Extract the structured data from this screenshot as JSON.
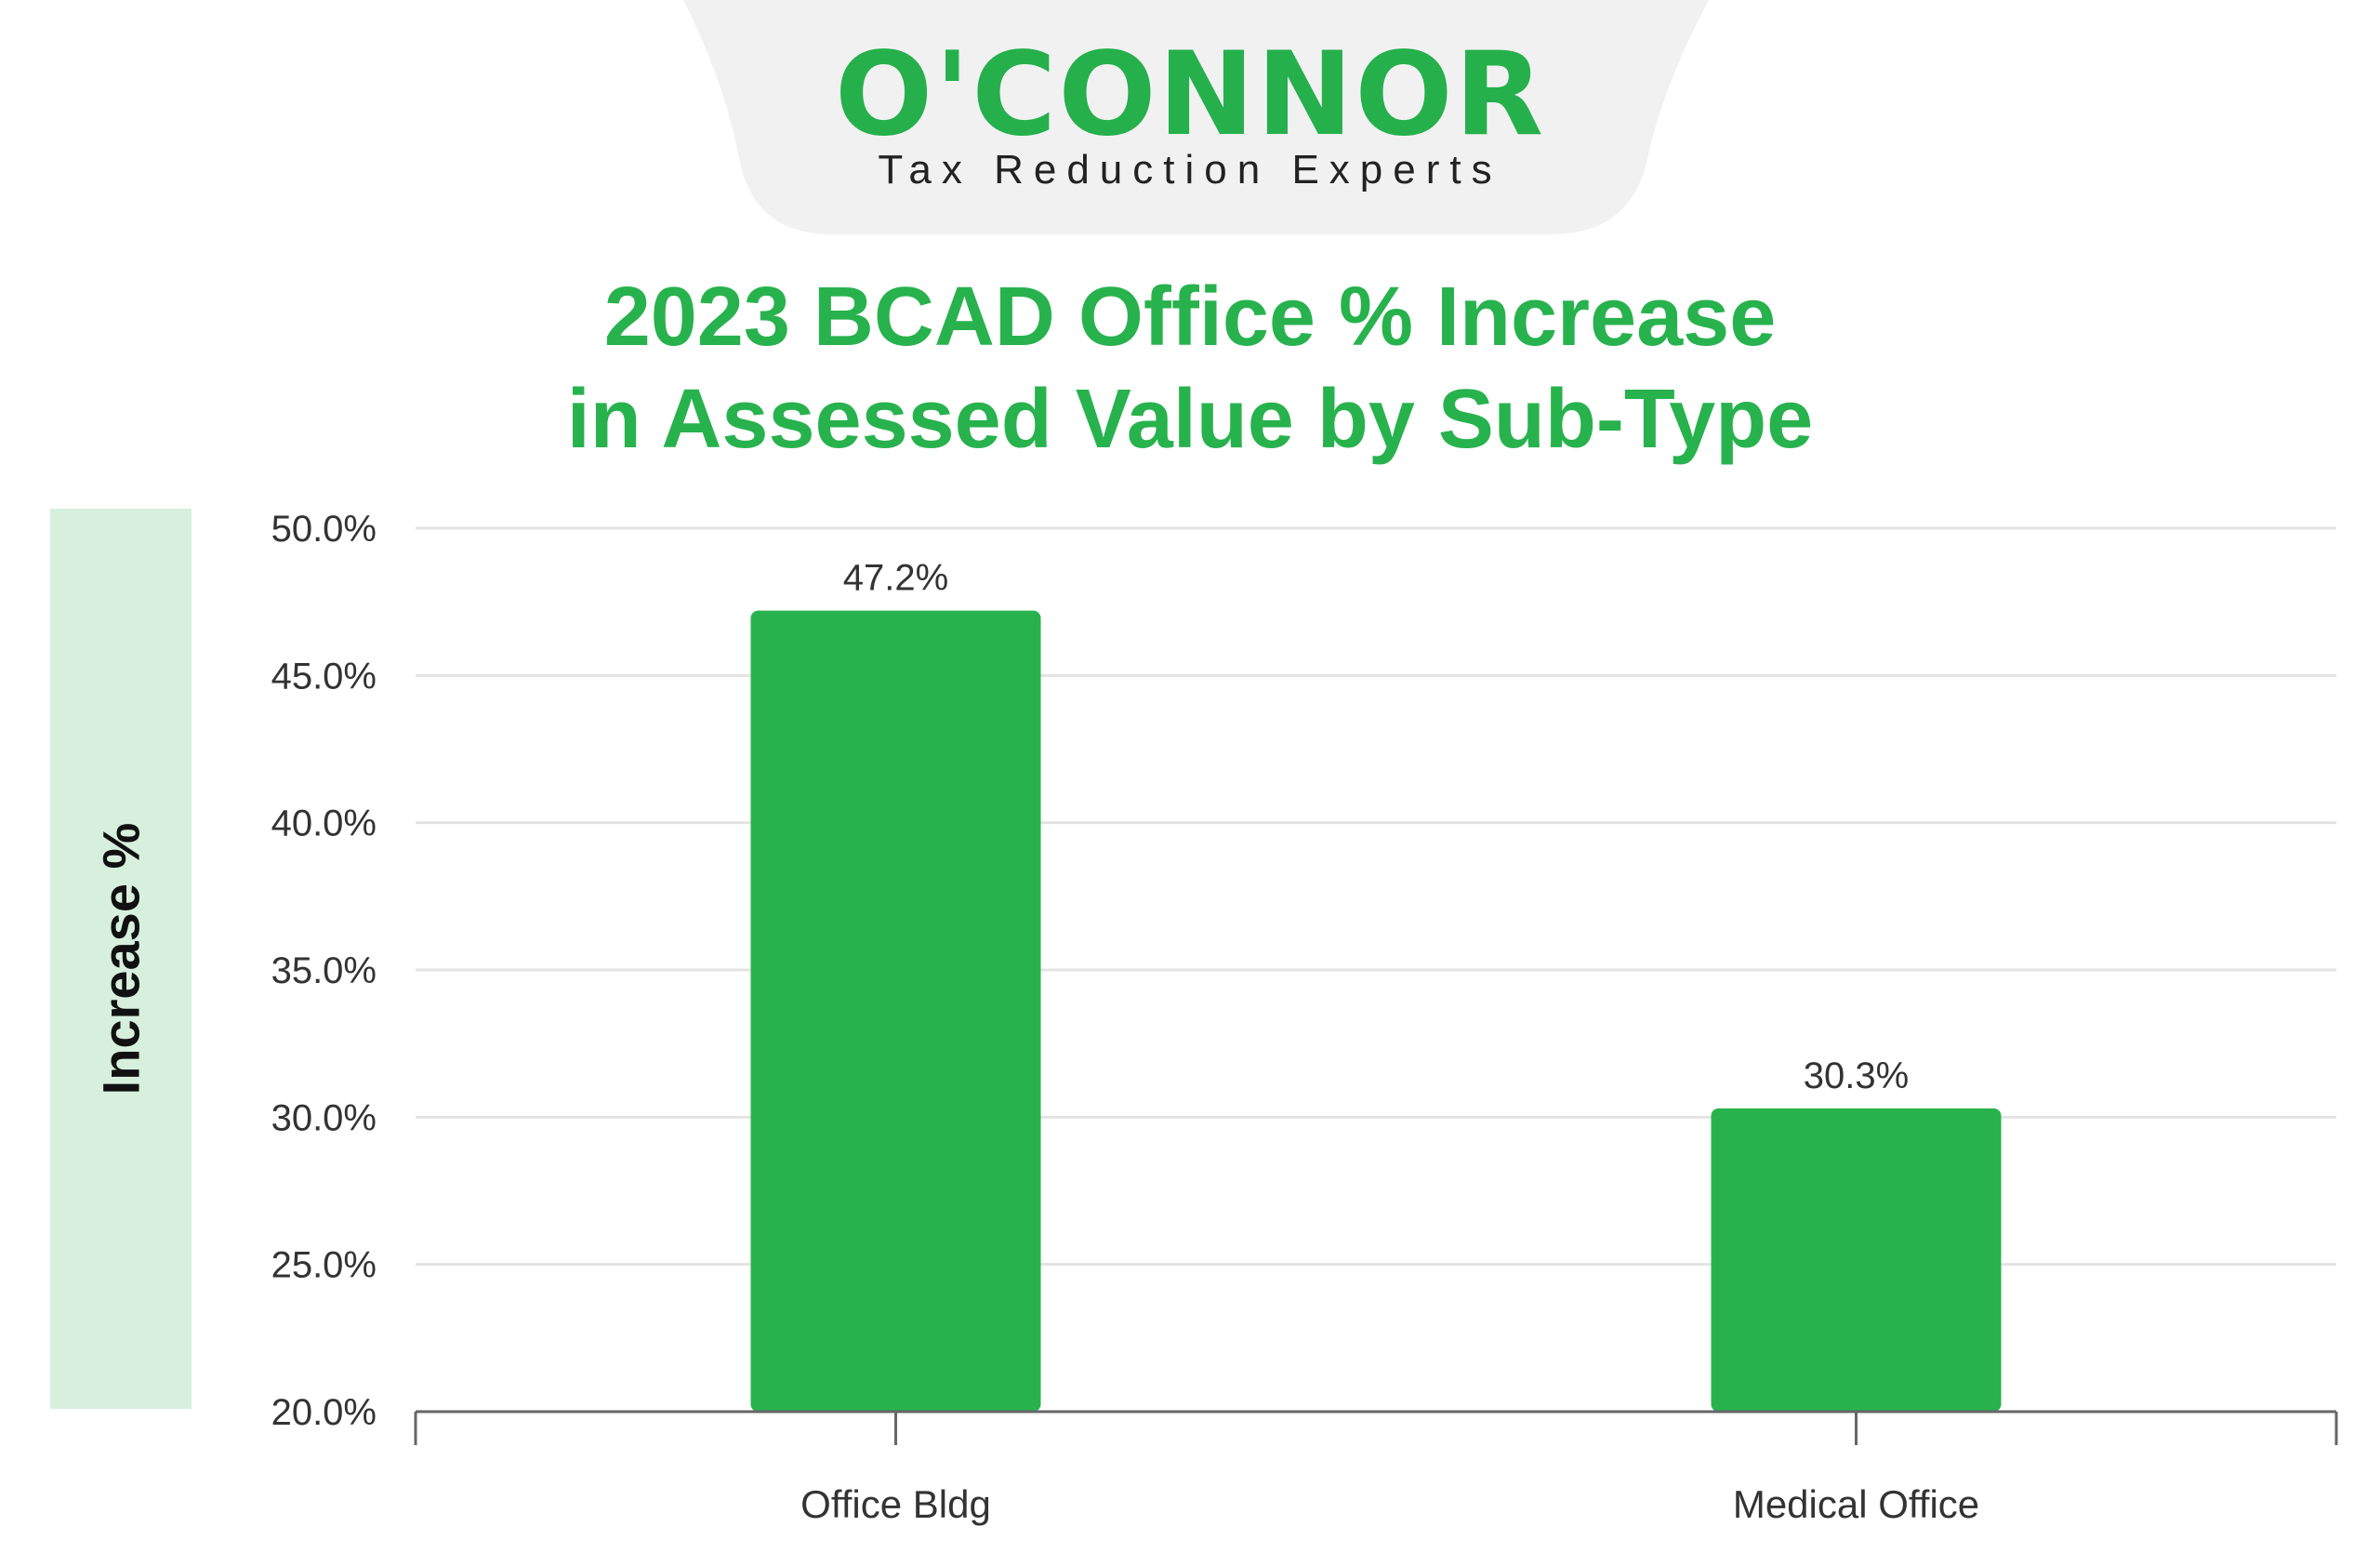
{
  "logo": {
    "brand": "O'CONNOR",
    "tagline": "Tax Reduction Experts",
    "brand_color": "#25b04b"
  },
  "chart_data": {
    "type": "bar",
    "title_line1": "2023 BCAD Office % Increase",
    "title_line2": "in Assessed Value by Sub-Type",
    "ylabel": "Increase %",
    "xlabel": "",
    "categories": [
      "Office Bldg",
      "Medical Office"
    ],
    "values": [
      47.2,
      30.3
    ],
    "value_labels": [
      "47.2%",
      "30.3%"
    ],
    "ylim": [
      20,
      50
    ],
    "yticks": [
      20,
      25,
      30,
      35,
      40,
      45,
      50
    ],
    "ytick_labels": [
      "20.0%",
      "25.0%",
      "30.0%",
      "35.0%",
      "40.0%",
      "45.0%",
      "50.0%"
    ],
    "grid": true,
    "bar_color": "#28b24d",
    "title_color": "#28b24d"
  }
}
